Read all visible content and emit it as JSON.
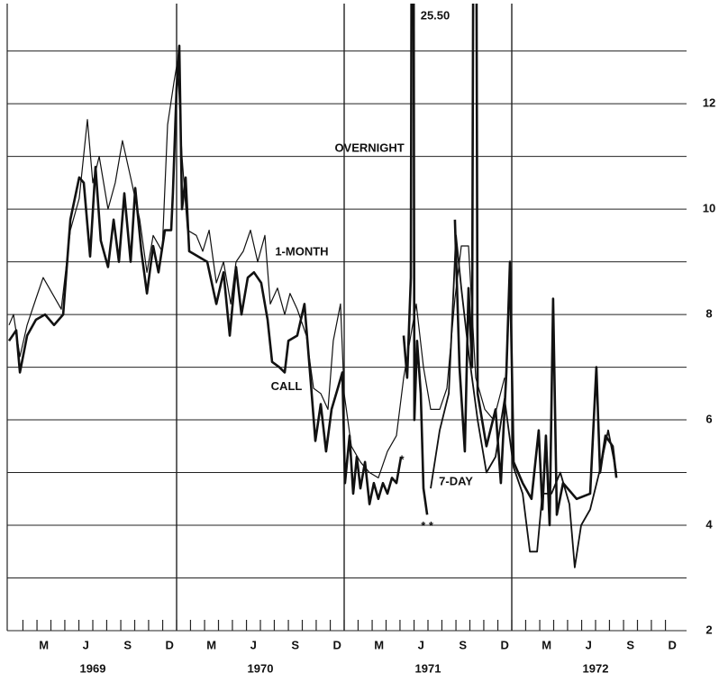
{
  "chart_data": {
    "type": "line",
    "xlim": [
      1969,
      1973
    ],
    "ylim": [
      2,
      13.9
    ],
    "yticks": [
      2,
      4,
      6,
      8,
      10,
      12
    ],
    "minor_yticks": [
      3,
      5,
      7,
      9,
      11,
      13
    ],
    "xgrid": [
      1970,
      1971,
      1972
    ],
    "xticks": [
      {
        "value": 1969.208,
        "label": "M"
      },
      {
        "value": 1969.458,
        "label": "J"
      },
      {
        "value": 1969.708,
        "label": "S"
      },
      {
        "value": 1969.958,
        "label": "D"
      },
      {
        "value": 1970.208,
        "label": "M"
      },
      {
        "value": 1970.458,
        "label": "J"
      },
      {
        "value": 1970.708,
        "label": "S"
      },
      {
        "value": 1970.958,
        "label": "D"
      },
      {
        "value": 1971.208,
        "label": "M"
      },
      {
        "value": 1971.458,
        "label": "J"
      },
      {
        "value": 1971.708,
        "label": "S"
      },
      {
        "value": 1971.958,
        "label": "D"
      },
      {
        "value": 1972.208,
        "label": "M"
      },
      {
        "value": 1972.458,
        "label": "J"
      },
      {
        "value": 1972.708,
        "label": "S"
      },
      {
        "value": 1972.958,
        "label": "D"
      }
    ],
    "year_ticks": [
      {
        "value": 1969.5,
        "label": "1969"
      },
      {
        "value": 1970.5,
        "label": "1970"
      },
      {
        "value": 1971.5,
        "label": "1971"
      },
      {
        "value": 1972.5,
        "label": "1972"
      }
    ],
    "month_ticks": [
      1969.083,
      1969.167,
      1969.25,
      1969.333,
      1969.417,
      1969.5,
      1969.583,
      1969.667,
      1969.75,
      1969.833,
      1969.917,
      1970,
      1970.083,
      1970.167,
      1970.25,
      1970.333,
      1970.417,
      1970.5,
      1970.583,
      1970.667,
      1970.75,
      1970.833,
      1970.917,
      1971,
      1971.083,
      1971.167,
      1971.25,
      1971.333,
      1971.417,
      1971.5,
      1971.583,
      1971.667,
      1971.75,
      1971.833,
      1971.917,
      1972,
      1972.083,
      1972.167,
      1972.25,
      1972.333,
      1972.417,
      1972.5,
      1972.583,
      1972.667,
      1972.75,
      1972.833,
      1972.917
    ],
    "series": [
      {
        "name": "1-MONTH",
        "color": "#111111",
        "line_width": 1.2,
        "x": [
          1969,
          1969.027,
          1969.065,
          1969.108,
          1969.161,
          1969.204,
          1969.258,
          1969.312,
          1969.366,
          1969.419,
          1969.468,
          1969.5,
          1969.538,
          1969.591,
          1969.634,
          1969.677,
          1969.726,
          1969.78,
          1969.823,
          1969.86,
          1969.914,
          1969.946,
          1969.984,
          1970.005,
          1970.032,
          1970.065,
          1970.118,
          1970.156,
          1970.194,
          1970.237,
          1970.28,
          1970.323,
          1970.355,
          1970.398,
          1970.441,
          1970.484,
          1970.527,
          1970.559,
          1970.602,
          1970.645,
          1970.677,
          1970.72,
          1970.774,
          1970.817,
          1970.86,
          1970.903,
          1970.935,
          1970.978,
          1971,
          1971.043,
          1971.097,
          1971.151,
          1971.204,
          1971.258,
          1971.312,
          1971.355,
          1971.392,
          1971.43,
          1971.473,
          1971.516,
          1971.57,
          1971.613,
          1971.661,
          1971.699,
          1971.742,
          1971.785,
          1971.839,
          1971.892,
          1971.957
        ],
        "values": [
          7.8,
          8.0,
          7.2,
          7.8,
          8.3,
          8.7,
          8.4,
          8.1,
          9.6,
          10.2,
          11.7,
          10.5,
          11.0,
          10.0,
          10.5,
          11.3,
          10.6,
          9.8,
          8.8,
          9.5,
          9.2,
          11.6,
          12.4,
          12.8,
          11.0,
          9.6,
          9.5,
          9.2,
          9.6,
          8.6,
          9.0,
          8.2,
          9.0,
          9.2,
          9.6,
          9.0,
          9.5,
          8.2,
          8.5,
          8.0,
          8.4,
          8.1,
          7.6,
          6.6,
          6.5,
          6.2,
          7.5,
          8.2,
          6.5,
          5.5,
          5.2,
          5.0,
          4.9,
          5.4,
          5.7,
          6.8,
          7.5,
          8.2,
          7.0,
          6.2,
          6.2,
          6.6,
          8.3,
          9.3,
          9.3,
          6.8,
          6.2,
          6.0,
          6.8
        ]
      },
      {
        "name": "CALL",
        "color": "#111111",
        "line_width": 2.6,
        "x": [
          1969,
          1969.043,
          1969.065,
          1969.108,
          1969.161,
          1969.215,
          1969.269,
          1969.323,
          1969.366,
          1969.419,
          1969.446,
          1969.484,
          1969.516,
          1969.548,
          1969.591,
          1969.624,
          1969.656,
          1969.688,
          1969.726,
          1969.753,
          1969.79,
          1969.823,
          1969.86,
          1969.892,
          1969.93,
          1969.968,
          1969.978,
          1970,
          1970.016,
          1970.032,
          1970.054,
          1970.075,
          1970.129,
          1970.183,
          1970.237,
          1970.28,
          1970.317,
          1970.355,
          1970.387,
          1970.425,
          1970.462,
          1970.505,
          1970.543,
          1970.57,
          1970.613,
          1970.645,
          1970.667,
          1970.72,
          1970.763,
          1970.801,
          1970.828,
          1970.86,
          1970.892,
          1970.925,
          1970.962,
          1970.989,
          1971.005,
          1971.032,
          1971.054,
          1971.075,
          1971.097,
          1971.124,
          1971.151,
          1971.177,
          1971.204,
          1971.231,
          1971.258,
          1971.285,
          1971.312,
          1971.339
        ],
        "values": [
          7.5,
          7.7,
          6.9,
          7.6,
          7.9,
          8.0,
          7.8,
          8.0,
          9.8,
          10.6,
          10.5,
          9.1,
          10.8,
          9.4,
          8.9,
          9.8,
          9.0,
          10.3,
          9.0,
          10.4,
          9.2,
          8.4,
          9.3,
          8.8,
          9.6,
          9.6,
          10.3,
          12.3,
          13.1,
          10.0,
          10.6,
          9.2,
          9.1,
          9.0,
          8.2,
          8.8,
          7.6,
          8.9,
          8.0,
          8.7,
          8.8,
          8.6,
          7.9,
          7.1,
          7.0,
          6.9,
          7.5,
          7.6,
          8.2,
          6.7,
          5.6,
          6.3,
          5.4,
          6.2,
          6.6,
          6.9,
          4.8,
          5.7,
          4.6,
          5.3,
          4.7,
          5.2,
          4.4,
          4.8,
          4.5,
          4.8,
          4.6,
          4.9,
          4.8,
          5.3
        ]
      },
      {
        "name": "OVERNIGHT",
        "color": "#111111",
        "line_width": 2.6,
        "x": [
          1971.355,
          1971.376,
          1971.398,
          1971.409,
          1971.419,
          1971.435,
          1971.457,
          1971.473,
          1971.495,
          null,
          1971.661,
          1971.688,
          1971.72,
          1971.742,
          1971.763,
          1971.78,
          1971.796,
          1971.849,
          1971.903,
          1971.935,
          1971.968,
          1971.989,
          1972.011,
          1972.065,
          1972.118,
          1972.161,
          1972.183,
          1972.204,
          1972.226,
          1972.247,
          1972.269,
          1972.306,
          1972.387,
          1972.468,
          1972.505,
          1972.527,
          1972.559,
          1972.602,
          1972.624
        ],
        "values": [
          7.6,
          6.8,
          8.7,
          25.5,
          6.0,
          7.5,
          6.5,
          4.7,
          4.2,
          null,
          9.8,
          7.0,
          5.4,
          8.5,
          7.0,
          25.5,
          6.5,
          5.5,
          6.2,
          4.8,
          6.9,
          9.0,
          5.2,
          4.8,
          4.5,
          5.8,
          4.3,
          5.7,
          4.0,
          8.3,
          4.2,
          4.8,
          4.5,
          4.6,
          7.0,
          5.0,
          5.7,
          5.5,
          4.9
        ]
      },
      {
        "name": "7-DAY",
        "color": "#111111",
        "line_width": 1.8,
        "x": [
          1971.516,
          1971.57,
          1971.624,
          1971.667,
          1971.699,
          1971.742,
          1971.796,
          1971.849,
          1971.903,
          1971.957,
          1972.011,
          1972.065,
          1972.108,
          1972.151,
          1972.183,
          1972.237,
          1972.29,
          1972.344,
          1972.376,
          1972.414,
          1972.468,
          1972.522,
          1972.575,
          1972.624
        ],
        "values": [
          4.7,
          5.8,
          6.5,
          9.5,
          8.5,
          7.3,
          6.0,
          5.0,
          5.3,
          6.4,
          5.1,
          4.6,
          3.5,
          3.5,
          4.6,
          4.6,
          5.0,
          4.4,
          3.2,
          4.0,
          4.3,
          5.0,
          5.8,
          5.0
        ]
      }
    ],
    "annotations": [
      {
        "text": "25.50",
        "x": 1971.543,
        "y": 13.66
      },
      {
        "text": "OVERNIGHT",
        "x": 1971.151,
        "y": 11.15
      },
      {
        "text": "1-MONTH",
        "x": 1970.747,
        "y": 9.18
      },
      {
        "text": "CALL",
        "x": 1970.656,
        "y": 6.62
      },
      {
        "text": "7-DAY",
        "x": 1971.667,
        "y": 4.82
      },
      {
        "text": "*",
        "x": 1971.344,
        "y": 5.23
      },
      {
        "text": "* *",
        "x": 1971.495,
        "y": 3.97
      }
    ]
  }
}
